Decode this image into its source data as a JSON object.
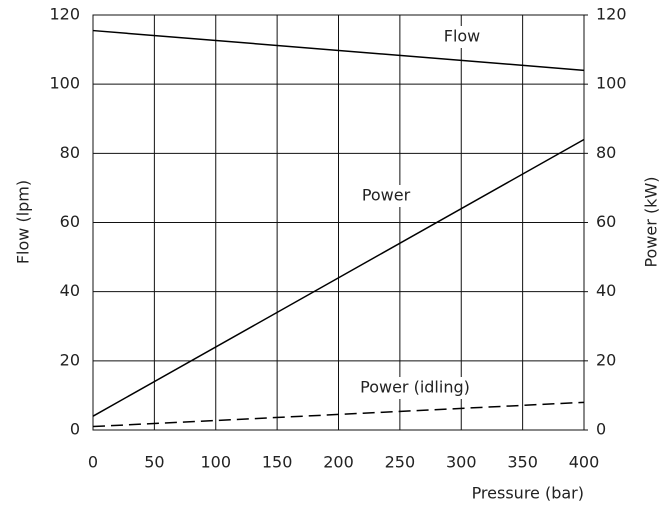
{
  "chart_data": {
    "type": "line",
    "xlabel": "Pressure (bar)",
    "ylabel": "Flow (lpm)",
    "y2label": "Power (kW)",
    "xlim": [
      0,
      400
    ],
    "xticks": [
      0,
      50,
      100,
      150,
      200,
      250,
      300,
      350,
      400
    ],
    "ylim": [
      0,
      120
    ],
    "yticks": [
      0,
      20,
      40,
      60,
      80,
      100,
      120
    ],
    "y2lim": [
      0,
      120
    ],
    "y2ticks": [
      0,
      20,
      40,
      60,
      80,
      100,
      120
    ],
    "grid": true,
    "series": [
      {
        "name": "Flow",
        "color": "#000000",
        "x": [
          0,
          400
        ],
        "values": [
          115.5,
          104
        ],
        "dash": false
      },
      {
        "name": "Power",
        "color": "#000000",
        "x": [
          0,
          400
        ],
        "values": [
          4,
          84
        ],
        "axis": "y2",
        "dash": false
      },
      {
        "name": "Power (idling)",
        "color": "#000000",
        "x": [
          0,
          400
        ],
        "values": [
          1,
          8
        ],
        "axis": "y2",
        "dash": true
      }
    ]
  }
}
